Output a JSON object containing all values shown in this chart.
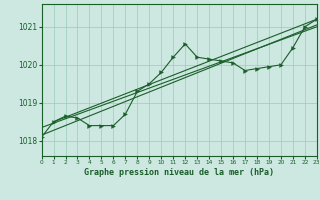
{
  "title": "Graphe pression niveau de la mer (hPa)",
  "bg_color": "#cce8e0",
  "grid_color": "#99ccbb",
  "line_color": "#1a5e2a",
  "xlim": [
    0,
    23
  ],
  "ylim": [
    1017.6,
    1021.6
  ],
  "yticks": [
    1018,
    1019,
    1020,
    1021
  ],
  "xticks": [
    0,
    1,
    2,
    3,
    4,
    5,
    6,
    7,
    8,
    9,
    10,
    11,
    12,
    13,
    14,
    15,
    16,
    17,
    18,
    19,
    20,
    21,
    22,
    23
  ],
  "main_series": [
    [
      0,
      1018.1
    ],
    [
      1,
      1018.5
    ],
    [
      2,
      1018.65
    ],
    [
      3,
      1018.6
    ],
    [
      4,
      1018.4
    ],
    [
      5,
      1018.4
    ],
    [
      6,
      1018.4
    ],
    [
      7,
      1018.7
    ],
    [
      8,
      1019.3
    ],
    [
      9,
      1019.5
    ],
    [
      10,
      1019.8
    ],
    [
      11,
      1020.2
    ],
    [
      12,
      1020.55
    ],
    [
      13,
      1020.2
    ],
    [
      14,
      1020.15
    ],
    [
      15,
      1020.1
    ],
    [
      16,
      1020.05
    ],
    [
      17,
      1019.85
    ],
    [
      18,
      1019.9
    ],
    [
      19,
      1019.95
    ],
    [
      20,
      1020.0
    ],
    [
      21,
      1020.45
    ],
    [
      22,
      1021.0
    ],
    [
      23,
      1021.2
    ]
  ],
  "trend_line1": [
    [
      0,
      1018.15
    ],
    [
      23,
      1021.05
    ]
  ],
  "trend_line2": [
    [
      0,
      1018.35
    ],
    [
      23,
      1021.0
    ]
  ],
  "trend_line3": [
    [
      1,
      1018.5
    ],
    [
      23,
      1021.2
    ]
  ]
}
